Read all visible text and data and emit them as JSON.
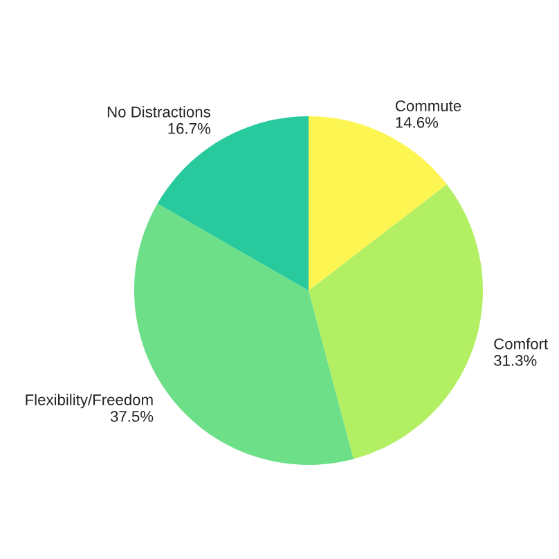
{
  "chart_data": {
    "type": "pie",
    "categories": [
      "Commute",
      "Comfort",
      "Flexibility/Freedom",
      "No Distractions"
    ],
    "values": [
      14.6,
      31.3,
      37.5,
      16.7
    ],
    "value_labels": [
      "14.6%",
      "31.3%",
      "37.5%",
      "16.7%"
    ],
    "colors": [
      "#fdf552",
      "#b2ef63",
      "#6cdf88",
      "#27c99d"
    ]
  }
}
